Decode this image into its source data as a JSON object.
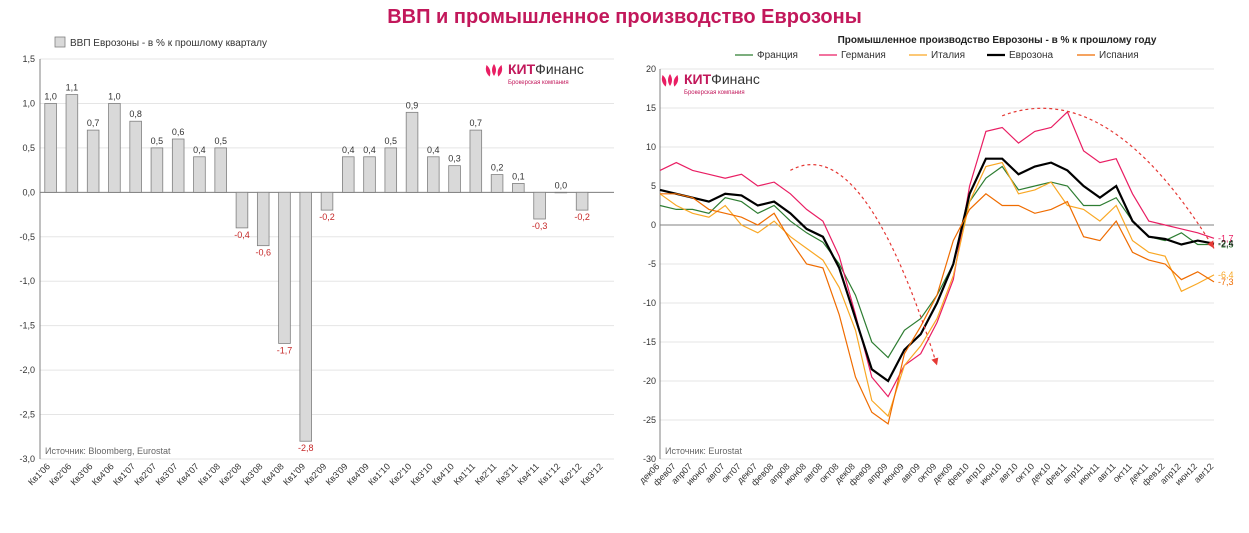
{
  "title": "ВВП и промышленное производство Еврозоны",
  "brand": {
    "name": "КИТФинанс",
    "sub": "Брокерская компания",
    "kit": "КИТ",
    "finance": "Финанс"
  },
  "bar_chart": {
    "type": "bar",
    "legend": "ВВП Еврозоны - в % к прошлому кварталу",
    "source": "Источник: Bloomberg, Eurostat",
    "categories": [
      "Кв1'06",
      "Кв2'06",
      "Кв3'06",
      "Кв4'06",
      "Кв1'07",
      "Кв2'07",
      "Кв3'07",
      "Кв4'07",
      "Кв1'08",
      "Кв2'08",
      "Кв3'08",
      "Кв4'08",
      "Кв1'09",
      "Кв2'09",
      "Кв3'09",
      "Кв4'09",
      "Кв1'10",
      "Кв2'10",
      "Кв3'10",
      "Кв4'10",
      "Кв1'11",
      "Кв2'11",
      "Кв3'11",
      "Кв4'11",
      "Кв1'12",
      "Кв2'12",
      "Кв3'12"
    ],
    "values": [
      1.0,
      1.1,
      0.7,
      1.0,
      0.8,
      0.5,
      0.6,
      0.4,
      0.5,
      -0.4,
      -0.6,
      -1.7,
      -2.8,
      -0.2,
      0.4,
      0.4,
      0.5,
      0.9,
      0.4,
      0.3,
      0.7,
      0.2,
      0.1,
      -0.3,
      0.0,
      -0.2,
      null
    ],
    "value_labels": [
      "1,0",
      "1,1",
      "0,7",
      "1,0",
      "0,8",
      "0,5",
      "0,6",
      "0,4",
      "0,5",
      "-0,4",
      "-0,6",
      "-1,7",
      "-2,8",
      "-0,2",
      "0,4",
      "0,4",
      "0,5",
      "0,9",
      "0,4",
      "0,3",
      "0,7",
      "0,2",
      "0,1",
      "-0,3",
      "0,0",
      "-0,2",
      ""
    ],
    "ylim": [
      -3.0,
      1.5
    ],
    "ytick_step": 0.5,
    "yticks_labels": [
      "-3,0",
      "-2,5",
      "-2,0",
      "-1,5",
      "-1,0",
      "-0,5",
      "0,0",
      "0,5",
      "1,0",
      "1,5"
    ],
    "bar_fill": "#d9d9d9",
    "bar_stroke": "#808080",
    "grid_color": "#e5e5e5",
    "axis_color": "#808080",
    "background_color": "#ffffff",
    "bar_width_ratio": 0.55
  },
  "line_chart": {
    "type": "line",
    "title": "Промышленное производство Еврозоны - в % к прошлому году",
    "source": "Источник: Eurostat",
    "ylim": [
      -30,
      20
    ],
    "ytick_step": 5,
    "ytick_labels": [
      "-30",
      "-25",
      "-20",
      "-15",
      "-10",
      "-5",
      "0",
      "5",
      "10",
      "15",
      "20"
    ],
    "x_months": [
      "дек06",
      "фев07",
      "апр07",
      "июн07",
      "авг07",
      "окт07",
      "дек07",
      "фев08",
      "апр08",
      "июн08",
      "авг08",
      "окт08",
      "дек08",
      "фев09",
      "апр09",
      "июн09",
      "авг09",
      "окт09",
      "дек09",
      "фев10",
      "апр10",
      "июн10",
      "авг10",
      "окт10",
      "дек10",
      "фев11",
      "апр11",
      "июн11",
      "авг11",
      "окт11",
      "дек11",
      "фев12",
      "апр12",
      "июн12",
      "авг12"
    ],
    "series": [
      {
        "name": "Франция",
        "color": "#2e7d32",
        "width": 1.2,
        "end_label": "-2,5",
        "data": [
          2.5,
          2.0,
          2.0,
          1.5,
          3.5,
          3.0,
          1.5,
          2.5,
          0.5,
          -1.0,
          -2.2,
          -5.0,
          -9.0,
          -15.0,
          -17.0,
          -13.5,
          -12.0,
          -9.0,
          -5.0,
          3.0,
          6.0,
          7.5,
          4.5,
          5.0,
          5.5,
          5.0,
          2.5,
          2.5,
          3.5,
          0.5,
          -1.5,
          -2.0,
          -1.0,
          -2.5,
          -2.5
        ]
      },
      {
        "name": "Германия",
        "color": "#e91e63",
        "width": 1.2,
        "end_label": "-1,7",
        "data": [
          7.0,
          8.0,
          7.0,
          6.5,
          6.0,
          6.5,
          5.0,
          5.5,
          4.0,
          2.0,
          0.5,
          -4.0,
          -11.5,
          -19.5,
          -22.0,
          -18.0,
          -16.5,
          -12.5,
          -7.0,
          5.0,
          12.0,
          12.5,
          10.5,
          12.0,
          12.5,
          14.5,
          9.5,
          8.0,
          8.5,
          4.0,
          0.5,
          0.0,
          -0.5,
          -1.0,
          -1.7
        ]
      },
      {
        "name": "Италия",
        "color": "#f9a825",
        "width": 1.2,
        "end_label": "-6,4",
        "data": [
          4.0,
          2.5,
          1.5,
          1.0,
          2.5,
          0.0,
          -1.0,
          0.5,
          -1.5,
          -3.0,
          -4.5,
          -8.0,
          -13.5,
          -22.5,
          -24.5,
          -18.0,
          -15.5,
          -12.0,
          -6.5,
          3.0,
          7.5,
          8.0,
          4.0,
          4.5,
          5.5,
          2.5,
          2.0,
          0.5,
          2.5,
          -2.0,
          -3.5,
          -4.0,
          -8.5,
          -7.5,
          -6.4
        ]
      },
      {
        "name": "Еврозона",
        "color": "#000000",
        "width": 2.2,
        "end_label": "-2,4",
        "data": [
          4.5,
          4.0,
          3.5,
          3.0,
          4.0,
          3.8,
          2.5,
          3.0,
          1.5,
          -0.5,
          -1.5,
          -5.5,
          -12.0,
          -18.5,
          -20.0,
          -16.0,
          -14.0,
          -10.0,
          -5.0,
          4.0,
          8.5,
          8.5,
          6.5,
          7.5,
          8.0,
          7.0,
          5.0,
          3.5,
          5.0,
          0.5,
          -1.5,
          -1.8,
          -2.5,
          -2.0,
          -2.4
        ]
      },
      {
        "name": "Испания",
        "color": "#ef6c00",
        "width": 1.2,
        "end_label": "-7,3",
        "data": [
          4.0,
          4.0,
          3.5,
          2.0,
          1.5,
          1.0,
          0.0,
          1.5,
          -2.0,
          -5.0,
          -5.5,
          -11.5,
          -19.5,
          -24.0,
          -25.5,
          -16.5,
          -13.0,
          -9.0,
          -2.0,
          2.0,
          4.0,
          2.5,
          2.5,
          1.5,
          2.0,
          3.0,
          -1.5,
          -2.0,
          0.5,
          -3.5,
          -4.5,
          -5.0,
          -7.0,
          -6.0,
          -7.3
        ]
      }
    ],
    "grid_color": "#e5e5e5",
    "axis_color": "#808080",
    "background_color": "#ffffff",
    "arrows": [
      {
        "from": [
          8,
          7
        ],
        "to": [
          17,
          -18
        ],
        "color": "#e53935"
      },
      {
        "from": [
          21,
          14
        ],
        "to": [
          34,
          -3
        ],
        "color": "#e53935"
      }
    ]
  }
}
